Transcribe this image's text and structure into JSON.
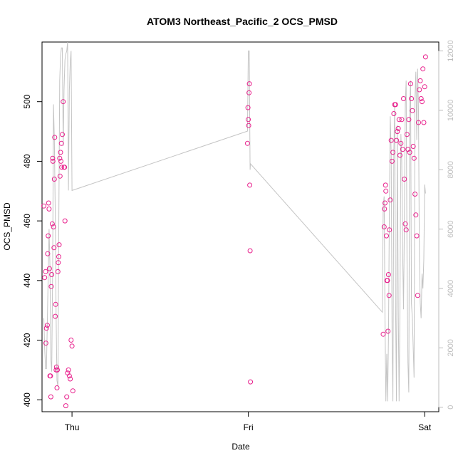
{
  "chart_data": {
    "type": "scatter",
    "title": "ATOM3 Northeast_Pacific_2 OCS_PMSD",
    "xlabel": "Date",
    "ylabel": "OCS_PMSD",
    "x_ticks": [
      "Thu",
      "Fri",
      "Sat"
    ],
    "xlim": [
      -0.17,
      2.08
    ],
    "ylim": [
      396,
      520
    ],
    "y_ticks": [
      400,
      420,
      440,
      460,
      480,
      500
    ],
    "y2lim": [
      -150,
      12300
    ],
    "y2_ticks": [
      0,
      2000,
      4000,
      6000,
      8000,
      10000,
      12000
    ],
    "colors": {
      "points": "#e8208c",
      "altitude_line": "#c4c4c4",
      "right_axis": "#bdbdbd"
    },
    "series": [
      {
        "kind": "points",
        "axis": "left",
        "x": [
          -0.16,
          -0.155,
          -0.15,
          -0.148,
          -0.145,
          -0.14,
          -0.138,
          -0.135,
          -0.133,
          -0.13,
          -0.128,
          -0.125,
          -0.122,
          -0.12,
          -0.118,
          -0.115,
          -0.112,
          -0.11,
          -0.108,
          -0.105,
          -0.102,
          -0.1,
          -0.098,
          -0.095,
          -0.093,
          -0.09,
          -0.088,
          -0.085,
          -0.083,
          -0.08,
          -0.078,
          -0.075,
          -0.073,
          -0.07,
          -0.068,
          -0.065,
          -0.063,
          -0.06,
          -0.058,
          -0.055,
          -0.05,
          -0.045,
          -0.042,
          -0.04,
          -0.035,
          -0.03,
          -0.025,
          -0.02,
          -0.015,
          -0.01,
          -0.005,
          0.0,
          0.005,
          0.995,
          0.998,
          1.0,
          1.002,
          1.004,
          1.006,
          1.008,
          1.01,
          1.012,
          1.765,
          1.77,
          1.772,
          1.775,
          1.778,
          1.78,
          1.783,
          1.786,
          1.789,
          1.792,
          1.795,
          1.798,
          1.8,
          1.805,
          1.81,
          1.815,
          1.82,
          1.825,
          1.83,
          1.835,
          1.84,
          1.845,
          1.85,
          1.855,
          1.86,
          1.865,
          1.87,
          1.875,
          1.88,
          1.885,
          1.89,
          1.895,
          1.9,
          1.905,
          1.91,
          1.915,
          1.92,
          1.925,
          1.93,
          1.935,
          1.94,
          1.945,
          1.95,
          1.955,
          1.96,
          1.965,
          1.97,
          1.975,
          1.98,
          1.985,
          1.99,
          1.995,
          2.0,
          2.005
        ],
        "y": [
          465,
          441,
          443,
          419,
          424,
          425,
          449,
          455,
          466,
          464,
          444,
          408,
          408,
          401,
          438,
          442,
          459,
          481,
          480,
          458,
          451,
          474,
          488,
          428,
          432,
          410,
          411,
          404,
          410,
          443,
          446,
          448,
          452,
          481,
          475,
          483,
          480,
          486,
          478,
          489,
          500,
          478,
          478,
          460,
          398,
          401,
          409,
          410,
          408,
          407,
          420,
          418,
          403,
          486,
          498,
          494,
          492,
          503,
          506,
          472,
          450,
          406,
          422,
          458,
          464,
          466,
          472,
          470,
          455,
          440,
          440,
          423,
          442,
          435,
          457,
          467,
          487,
          480,
          483,
          496,
          499,
          499,
          487,
          490,
          491,
          494,
          482,
          486,
          494,
          484,
          501,
          474,
          459,
          457,
          489,
          484,
          494,
          483,
          506,
          501,
          497,
          485,
          481,
          469,
          462,
          455,
          435,
          493,
          504,
          507,
          501,
          500,
          511,
          493,
          505,
          515
        ]
      },
      {
        "kind": "line",
        "axis": "right",
        "x": [
          -0.16,
          -0.155,
          -0.15,
          -0.145,
          -0.14,
          -0.135,
          -0.13,
          -0.125,
          -0.12,
          -0.115,
          -0.11,
          -0.105,
          -0.1,
          -0.095,
          -0.09,
          -0.085,
          -0.08,
          -0.075,
          -0.07,
          -0.065,
          -0.06,
          -0.055,
          -0.05,
          -0.045,
          -0.04,
          -0.035,
          -0.03,
          -0.025,
          -0.02,
          -0.015,
          -0.01,
          -0.005,
          0.0,
          0.995,
          1.0,
          1.005,
          1.01,
          1.012,
          1.76,
          1.765,
          1.77,
          1.775,
          1.78,
          1.785,
          1.79,
          1.795,
          1.8,
          1.805,
          1.81,
          1.815,
          1.82,
          1.825,
          1.83,
          1.835,
          1.84,
          1.845,
          1.85,
          1.855,
          1.86,
          1.865,
          1.87,
          1.875,
          1.88,
          1.885,
          1.89,
          1.895,
          1.9,
          1.905,
          1.91,
          1.915,
          1.92,
          1.925,
          1.93,
          1.935,
          1.94,
          1.945,
          1.95,
          1.955,
          1.96,
          1.965,
          1.97,
          1.975,
          1.98,
          1.985,
          1.99,
          1.995,
          2.0,
          2.005
        ],
        "y": [
          3000,
          2000,
          1300,
          1300,
          2800,
          4500,
          6000,
          4800,
          1600,
          1200,
          4600,
          10200,
          9000,
          6500,
          3000,
          900,
          700,
          6000,
          11000,
          11800,
          12100,
          12100,
          8800,
          10700,
          11700,
          11900,
          12000,
          12300,
          7300,
          10700,
          11600,
          12000,
          7300,
          9300,
          12000,
          12000,
          8000,
          8200,
          3200,
          6800,
          7100,
          3000,
          200,
          1800,
          200,
          2400,
          6900,
          9800,
          8500,
          2500,
          200,
          8600,
          10200,
          3500,
          200,
          9500,
          3300,
          200,
          3400,
          9200,
          8300,
          5200,
          3300,
          6200,
          10200,
          11000,
          5000,
          1500,
          500,
          10000,
          11000,
          3500,
          3000,
          2000,
          1000,
          10400,
          11300,
          9000,
          11400,
          10000,
          5000,
          3500,
          3000,
          4500,
          4000,
          5000,
          7500,
          7200
        ]
      }
    ]
  }
}
